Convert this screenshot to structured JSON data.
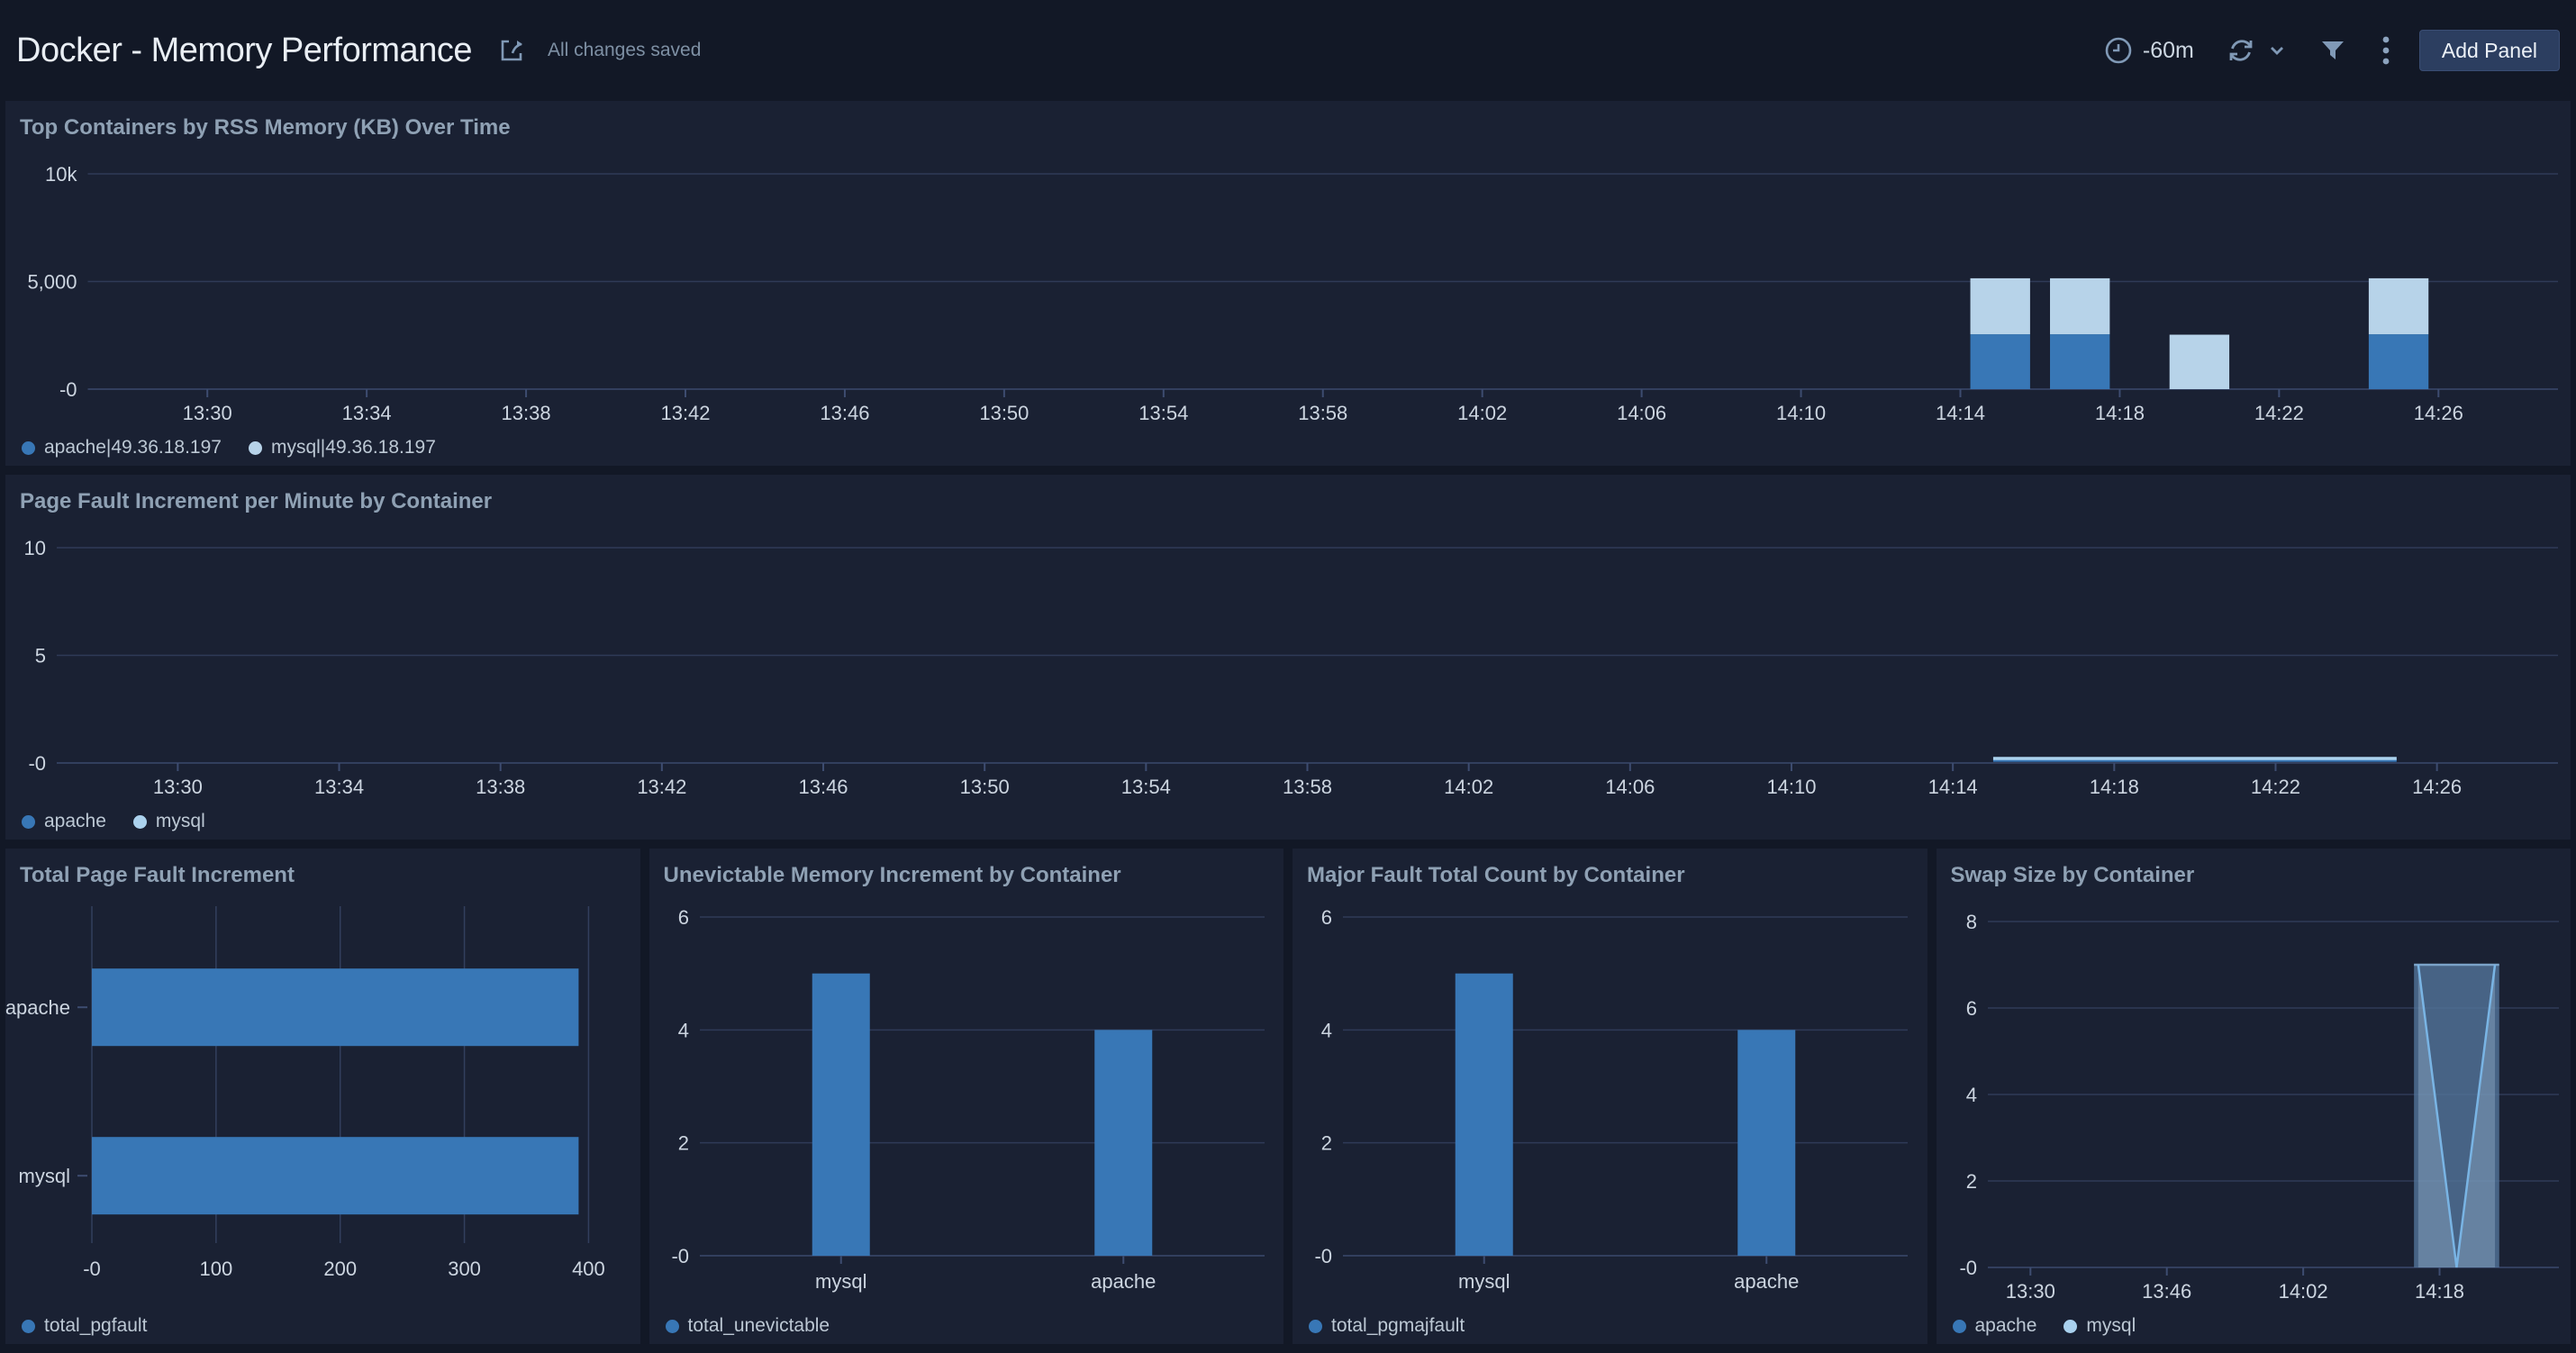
{
  "header": {
    "title": "Docker - Memory Performance",
    "status": "All changes saved",
    "time_range": "-60m",
    "add_panel_label": "Add Panel"
  },
  "colors": {
    "page_bg": "#121826",
    "panel_bg": "#1a2133",
    "grid": "#3d4c70",
    "axis_text": "#ccd5e0",
    "panel_title": "#8fa1b4",
    "legend_text": "#bcc8d4",
    "series_blue": "#3877b6",
    "series_light_blue": "#b7d3e9",
    "icon": "#8099b6",
    "button_bg": "#2c3e60"
  },
  "chart_data": [
    {
      "type": "bar",
      "subtype": "time-stacked",
      "title": "Top Containers by RSS Memory (KB) Over Time",
      "x_domain": [
        "13:27",
        "14:29"
      ],
      "x_ticks": [
        "13:30",
        "13:34",
        "13:38",
        "13:42",
        "13:46",
        "13:50",
        "13:54",
        "13:58",
        "14:02",
        "14:06",
        "14:10",
        "14:14",
        "14:18",
        "14:22",
        "14:26"
      ],
      "ylim": [
        0,
        10000
      ],
      "y_ticks": [
        {
          "label": "10k",
          "value": 10000
        },
        {
          "label": "5,000",
          "value": 5000
        },
        {
          "label": "-0",
          "value": 0
        }
      ],
      "series": [
        {
          "name": "apache|49.36.18.197",
          "color": "#3877b6"
        },
        {
          "name": "mysql|49.36.18.197",
          "color": "#b7d3e9"
        }
      ],
      "bar_width_minutes": 1.5,
      "bars": [
        {
          "time": "14:15",
          "values": [
            2550,
            2600
          ]
        },
        {
          "time": "14:17",
          "values": [
            2550,
            2600
          ]
        },
        {
          "time": "14:20",
          "values": [
            0,
            2530
          ]
        },
        {
          "time": "14:25",
          "values": [
            2550,
            2600
          ]
        }
      ]
    },
    {
      "type": "line",
      "title": "Page Fault Increment per Minute by Container",
      "x_domain": [
        "13:27",
        "14:29"
      ],
      "x_ticks": [
        "13:30",
        "13:34",
        "13:38",
        "13:42",
        "13:46",
        "13:50",
        "13:54",
        "13:58",
        "14:02",
        "14:06",
        "14:10",
        "14:14",
        "14:18",
        "14:22",
        "14:26"
      ],
      "ylim": [
        0,
        10
      ],
      "y_ticks": [
        {
          "label": "10",
          "value": 10
        },
        {
          "label": "5",
          "value": 5
        },
        {
          "label": "-0",
          "value": 0
        }
      ],
      "series": [
        {
          "name": "apache",
          "color": "#3877b6"
        },
        {
          "name": "mysql",
          "color": "#abd2ee"
        }
      ],
      "lines": [
        {
          "series": "apache",
          "points": [
            [
              "14:15",
              0
            ],
            [
              "14:25",
              0
            ]
          ]
        },
        {
          "series": "mysql",
          "points": [
            [
              "14:15",
              0
            ],
            [
              "14:25",
              0
            ]
          ]
        }
      ]
    },
    {
      "type": "bar",
      "orientation": "horizontal",
      "title": "Total Page Fault Increment",
      "categories": [
        "apache",
        "mysql"
      ],
      "values": [
        392,
        392
      ],
      "xlim": [
        0,
        400
      ],
      "x_ticks": [
        {
          "label": "-0",
          "value": 0
        },
        {
          "label": "100",
          "value": 100
        },
        {
          "label": "200",
          "value": 200
        },
        {
          "label": "300",
          "value": 300
        },
        {
          "label": "400",
          "value": 400
        }
      ],
      "series": [
        {
          "name": "total_pgfault",
          "color": "#3877b6"
        }
      ]
    },
    {
      "type": "bar",
      "orientation": "vertical",
      "title": "Unevictable Memory Increment by Container",
      "categories": [
        "mysql",
        "apache"
      ],
      "values": [
        5,
        4
      ],
      "ylim": [
        0,
        6
      ],
      "y_ticks": [
        {
          "label": "6",
          "value": 6
        },
        {
          "label": "4",
          "value": 4
        },
        {
          "label": "2",
          "value": 2
        },
        {
          "label": "-0",
          "value": 0
        }
      ],
      "series": [
        {
          "name": "total_unevictable",
          "color": "#3877b6"
        }
      ]
    },
    {
      "type": "bar",
      "orientation": "vertical",
      "title": "Major Fault Total Count by Container",
      "categories": [
        "mysql",
        "apache"
      ],
      "values": [
        5,
        4
      ],
      "ylim": [
        0,
        6
      ],
      "y_ticks": [
        {
          "label": "6",
          "value": 6
        },
        {
          "label": "4",
          "value": 4
        },
        {
          "label": "2",
          "value": 2
        },
        {
          "label": "-0",
          "value": 0
        }
      ],
      "series": [
        {
          "name": "total_pgmajfault",
          "color": "#3877b6"
        }
      ]
    },
    {
      "type": "area",
      "title": "Swap Size by Container",
      "x_domain": [
        "13:25",
        "14:32"
      ],
      "x_ticks": [
        "13:30",
        "13:46",
        "14:02",
        "14:18"
      ],
      "ylim": [
        0,
        8
      ],
      "y_ticks": [
        {
          "label": "8",
          "value": 8
        },
        {
          "label": "6",
          "value": 6
        },
        {
          "label": "4",
          "value": 4
        },
        {
          "label": "2",
          "value": 2
        },
        {
          "label": "-0",
          "value": 0
        }
      ],
      "series": [
        {
          "name": "apache",
          "color": "#3877b6"
        },
        {
          "name": "mysql",
          "color": "#a9d1ee"
        }
      ],
      "areas": [
        {
          "series": "apache",
          "points": [
            [
              "14:15",
              7
            ],
            [
              "14:25",
              7
            ]
          ],
          "fill": "#52749a",
          "fill_opacity": 0.8,
          "stroke": "#7ba3c9"
        },
        {
          "series": "mysql",
          "points": [
            [
              "14:15:30",
              7
            ],
            [
              "14:20",
              0
            ],
            [
              "14:24:30",
              7
            ]
          ],
          "fill": "#b7d3e9",
          "fill_opacity": 0.28,
          "stroke": "#79b4e4"
        }
      ]
    }
  ]
}
